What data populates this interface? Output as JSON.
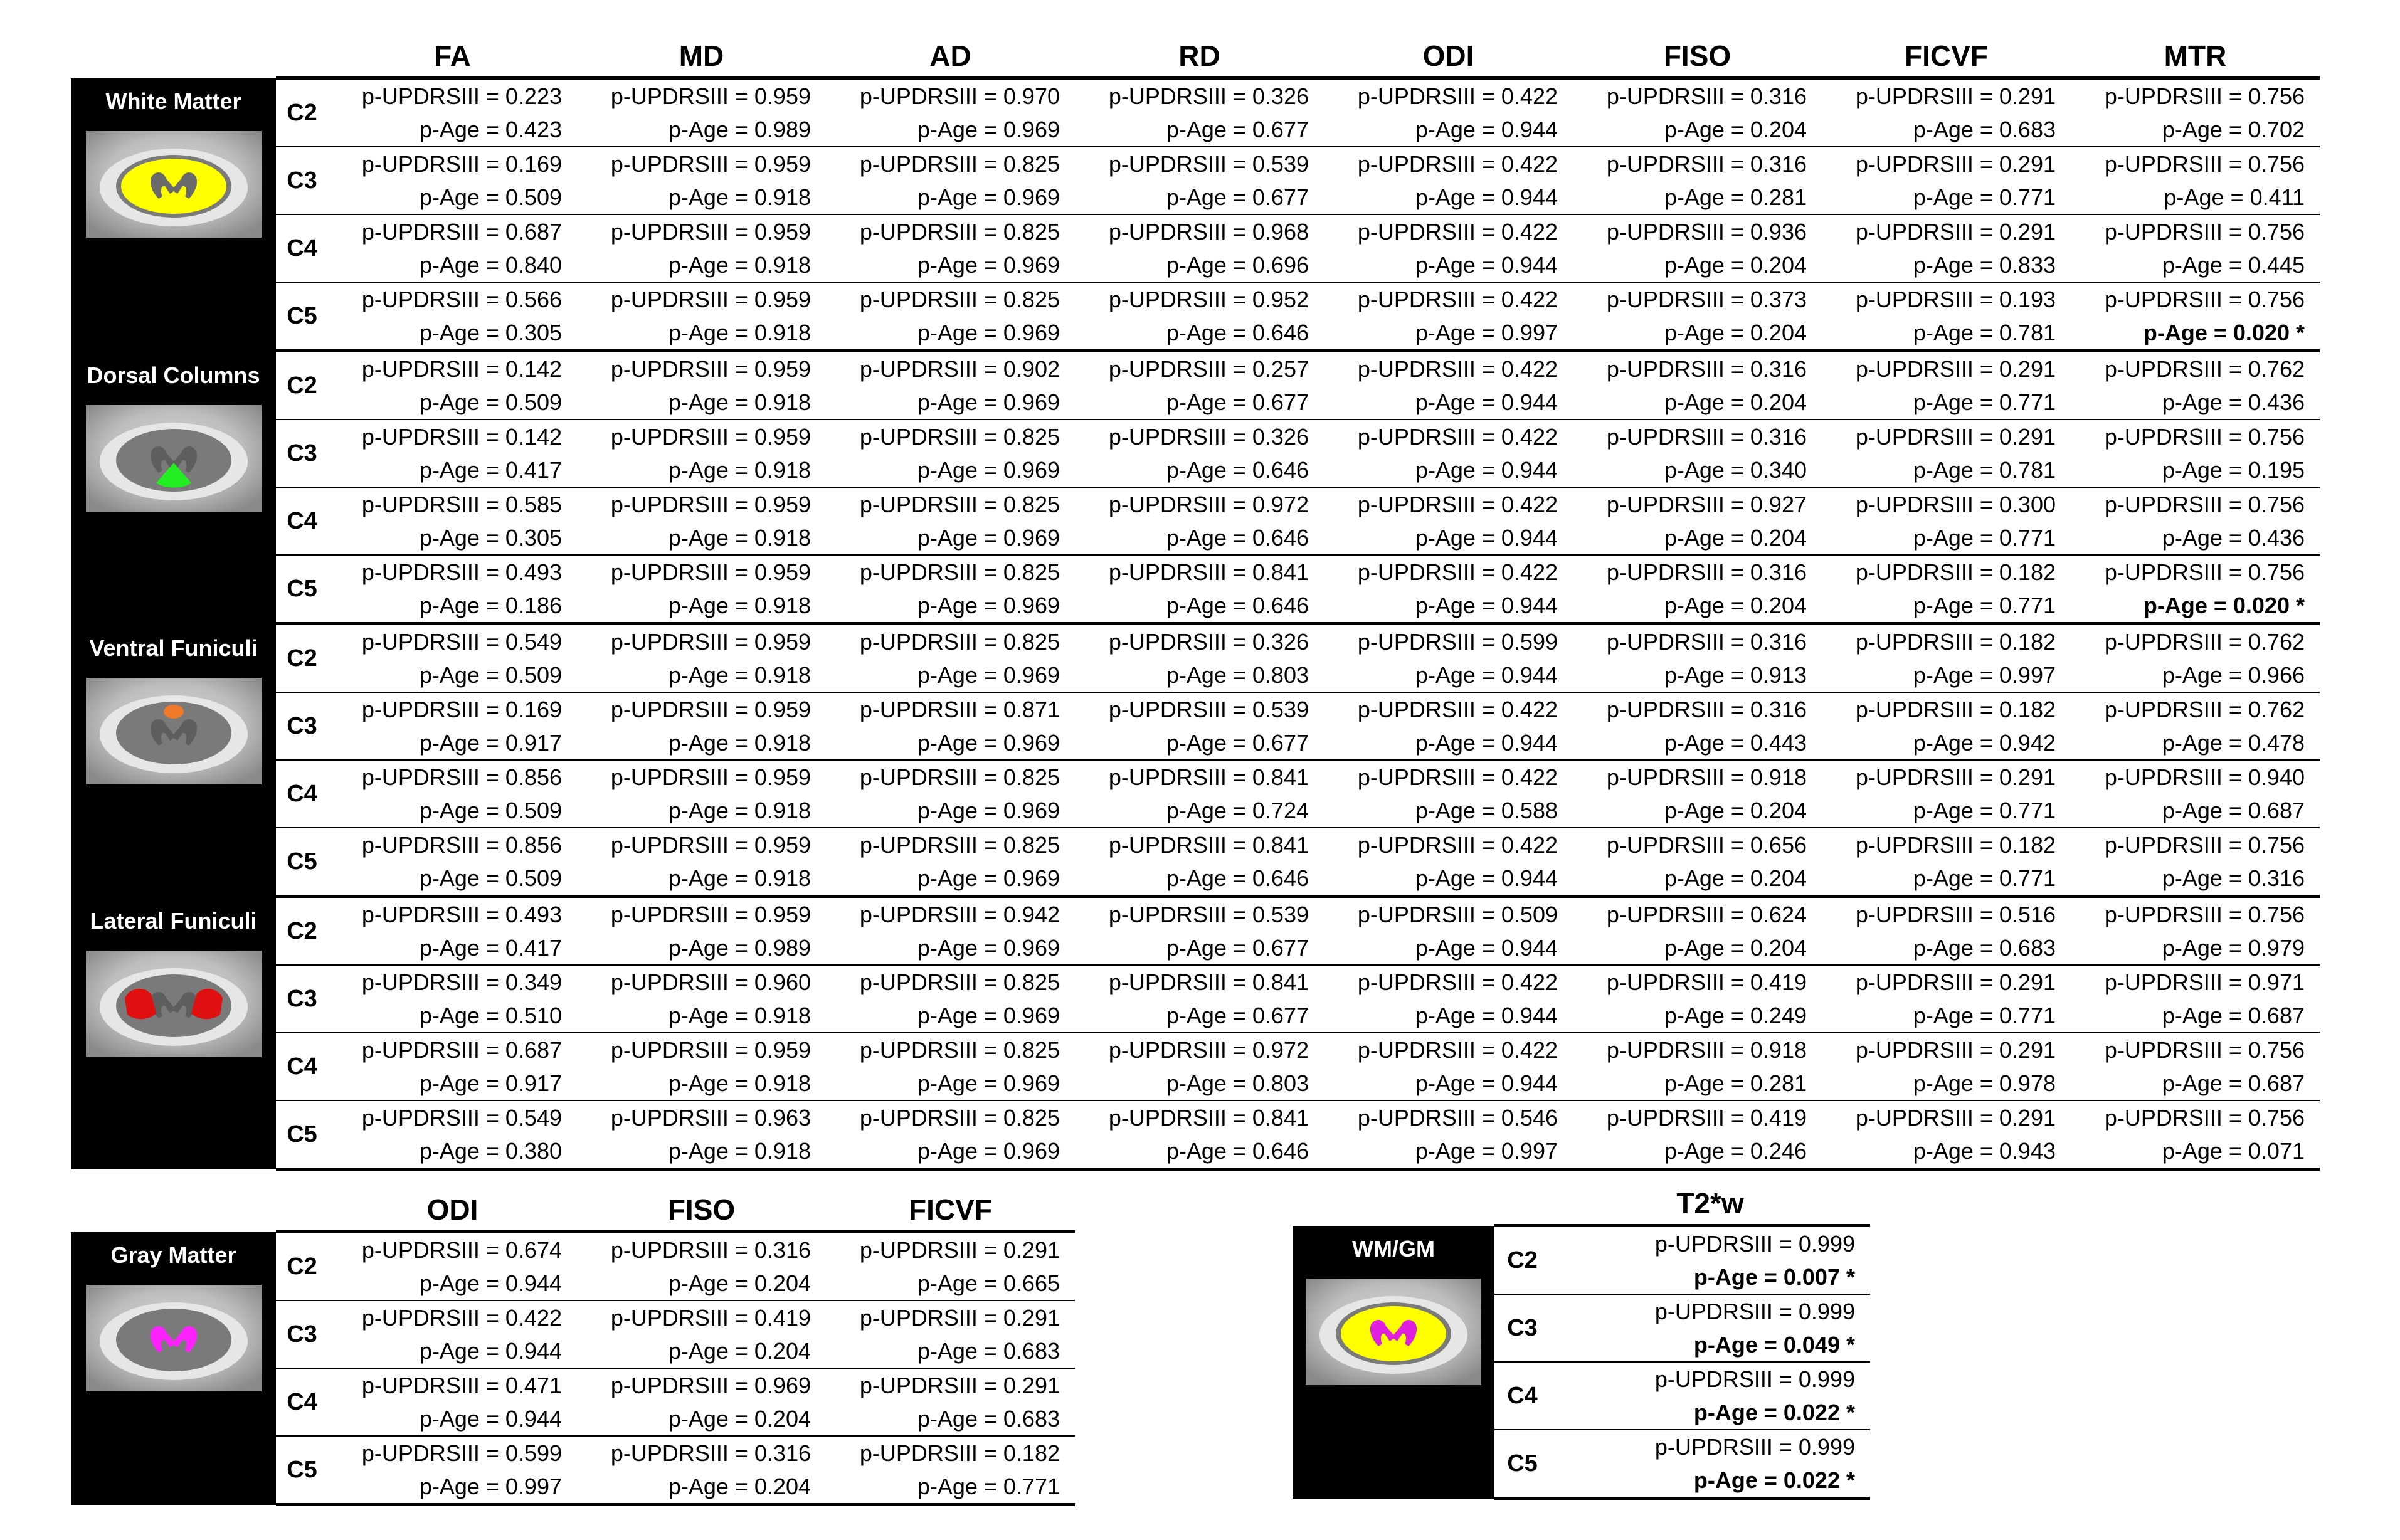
{
  "main_table": {
    "columns": [
      "FA",
      "MD",
      "AD",
      "RD",
      "ODI",
      "FISO",
      "FICVF",
      "MTR"
    ],
    "groups": [
      {
        "label": "White Matter",
        "thumb": "white-matter",
        "rows": [
          {
            "level": "C2",
            "cells": [
              [
                "p-UPDRSIII = 0.223",
                "p-Age = 0.423"
              ],
              [
                "p-UPDRSIII = 0.959",
                "p-Age = 0.989"
              ],
              [
                "p-UPDRSIII = 0.970",
                "p-Age = 0.969"
              ],
              [
                "p-UPDRSIII = 0.326",
                "p-Age = 0.677"
              ],
              [
                "p-UPDRSIII = 0.422",
                "p-Age = 0.944"
              ],
              [
                "p-UPDRSIII = 0.316",
                "p-Age = 0.204"
              ],
              [
                "p-UPDRSIII = 0.291",
                "p-Age = 0.683"
              ],
              [
                "p-UPDRSIII = 0.756",
                "p-Age = 0.702"
              ]
            ]
          },
          {
            "level": "C3",
            "cells": [
              [
                "p-UPDRSIII = 0.169",
                "p-Age = 0.509"
              ],
              [
                "p-UPDRSIII = 0.959",
                "p-Age = 0.918"
              ],
              [
                "p-UPDRSIII = 0.825",
                "p-Age = 0.969"
              ],
              [
                "p-UPDRSIII = 0.539",
                "p-Age = 0.677"
              ],
              [
                "p-UPDRSIII = 0.422",
                "p-Age = 0.944"
              ],
              [
                "p-UPDRSIII = 0.316",
                "p-Age = 0.281"
              ],
              [
                "p-UPDRSIII = 0.291",
                "p-Age = 0.771"
              ],
              [
                "p-UPDRSIII = 0.756",
                "p-Age = 0.411"
              ]
            ]
          },
          {
            "level": "C4",
            "cells": [
              [
                "p-UPDRSIII = 0.687",
                "p-Age = 0.840"
              ],
              [
                "p-UPDRSIII = 0.959",
                "p-Age = 0.918"
              ],
              [
                "p-UPDRSIII = 0.825",
                "p-Age = 0.969"
              ],
              [
                "p-UPDRSIII = 0.968",
                "p-Age = 0.696"
              ],
              [
                "p-UPDRSIII = 0.422",
                "p-Age = 0.944"
              ],
              [
                "p-UPDRSIII = 0.936",
                "p-Age = 0.204"
              ],
              [
                "p-UPDRSIII = 0.291",
                "p-Age = 0.833"
              ],
              [
                "p-UPDRSIII = 0.756",
                "p-Age = 0.445"
              ]
            ]
          },
          {
            "level": "C5",
            "cells": [
              [
                "p-UPDRSIII = 0.566",
                "p-Age = 0.305"
              ],
              [
                "p-UPDRSIII = 0.959",
                "p-Age = 0.918"
              ],
              [
                "p-UPDRSIII = 0.825",
                "p-Age = 0.969"
              ],
              [
                "p-UPDRSIII = 0.952",
                "p-Age = 0.646"
              ],
              [
                "p-UPDRSIII = 0.422",
                "p-Age = 0.997"
              ],
              [
                "p-UPDRSIII = 0.373",
                "p-Age = 0.204"
              ],
              [
                "p-UPDRSIII = 0.193",
                "p-Age = 0.781"
              ],
              [
                "p-UPDRSIII = 0.756",
                "p-Age = 0.020 *"
              ]
            ]
          }
        ]
      },
      {
        "label": "Dorsal Columns",
        "thumb": "dorsal-columns",
        "rows": [
          {
            "level": "C2",
            "cells": [
              [
                "p-UPDRSIII = 0.142",
                "p-Age = 0.509"
              ],
              [
                "p-UPDRSIII = 0.959",
                "p-Age = 0.918"
              ],
              [
                "p-UPDRSIII = 0.902",
                "p-Age = 0.969"
              ],
              [
                "p-UPDRSIII = 0.257",
                "p-Age = 0.677"
              ],
              [
                "p-UPDRSIII = 0.422",
                "p-Age = 0.944"
              ],
              [
                "p-UPDRSIII = 0.316",
                "p-Age = 0.204"
              ],
              [
                "p-UPDRSIII = 0.291",
                "p-Age = 0.771"
              ],
              [
                "p-UPDRSIII = 0.762",
                "p-Age = 0.436"
              ]
            ]
          },
          {
            "level": "C3",
            "cells": [
              [
                "p-UPDRSIII = 0.142",
                "p-Age = 0.417"
              ],
              [
                "p-UPDRSIII = 0.959",
                "p-Age = 0.918"
              ],
              [
                "p-UPDRSIII = 0.825",
                "p-Age = 0.969"
              ],
              [
                "p-UPDRSIII = 0.326",
                "p-Age = 0.646"
              ],
              [
                "p-UPDRSIII = 0.422",
                "p-Age = 0.944"
              ],
              [
                "p-UPDRSIII = 0.316",
                "p-Age = 0.340"
              ],
              [
                "p-UPDRSIII = 0.291",
                "p-Age = 0.781"
              ],
              [
                "p-UPDRSIII = 0.756",
                "p-Age = 0.195"
              ]
            ]
          },
          {
            "level": "C4",
            "cells": [
              [
                "p-UPDRSIII = 0.585",
                "p-Age = 0.305"
              ],
              [
                "p-UPDRSIII = 0.959",
                "p-Age = 0.918"
              ],
              [
                "p-UPDRSIII = 0.825",
                "p-Age = 0.969"
              ],
              [
                "p-UPDRSIII = 0.972",
                "p-Age = 0.646"
              ],
              [
                "p-UPDRSIII = 0.422",
                "p-Age = 0.944"
              ],
              [
                "p-UPDRSIII = 0.927",
                "p-Age = 0.204"
              ],
              [
                "p-UPDRSIII = 0.300",
                "p-Age = 0.771"
              ],
              [
                "p-UPDRSIII = 0.756",
                "p-Age = 0.436"
              ]
            ]
          },
          {
            "level": "C5",
            "cells": [
              [
                "p-UPDRSIII = 0.493",
                "p-Age = 0.186"
              ],
              [
                "p-UPDRSIII = 0.959",
                "p-Age = 0.918"
              ],
              [
                "p-UPDRSIII = 0.825",
                "p-Age = 0.969"
              ],
              [
                "p-UPDRSIII = 0.841",
                "p-Age = 0.646"
              ],
              [
                "p-UPDRSIII = 0.422",
                "p-Age = 0.944"
              ],
              [
                "p-UPDRSIII = 0.316",
                "p-Age = 0.204"
              ],
              [
                "p-UPDRSIII = 0.182",
                "p-Age = 0.771"
              ],
              [
                "p-UPDRSIII = 0.756",
                "p-Age = 0.020 *"
              ]
            ]
          }
        ]
      },
      {
        "label": "Ventral Funiculi",
        "thumb": "ventral-funiculi",
        "rows": [
          {
            "level": "C2",
            "cells": [
              [
                "p-UPDRSIII = 0.549",
                "p-Age = 0.509"
              ],
              [
                "p-UPDRSIII = 0.959",
                "p-Age = 0.918"
              ],
              [
                "p-UPDRSIII = 0.825",
                "p-Age = 0.969"
              ],
              [
                "p-UPDRSIII = 0.326",
                "p-Age = 0.803"
              ],
              [
                "p-UPDRSIII = 0.599",
                "p-Age = 0.944"
              ],
              [
                "p-UPDRSIII = 0.316",
                "p-Age = 0.913"
              ],
              [
                "p-UPDRSIII = 0.182",
                "p-Age = 0.997"
              ],
              [
                "p-UPDRSIII = 0.762",
                "p-Age = 0.966"
              ]
            ]
          },
          {
            "level": "C3",
            "cells": [
              [
                "p-UPDRSIII = 0.169",
                "p-Age = 0.917"
              ],
              [
                "p-UPDRSIII = 0.959",
                "p-Age = 0.918"
              ],
              [
                "p-UPDRSIII = 0.871",
                "p-Age = 0.969"
              ],
              [
                "p-UPDRSIII = 0.539",
                "p-Age = 0.677"
              ],
              [
                "p-UPDRSIII = 0.422",
                "p-Age = 0.944"
              ],
              [
                "p-UPDRSIII = 0.316",
                "p-Age = 0.443"
              ],
              [
                "p-UPDRSIII = 0.182",
                "p-Age = 0.942"
              ],
              [
                "p-UPDRSIII = 0.762",
                "p-Age = 0.478"
              ]
            ]
          },
          {
            "level": "C4",
            "cells": [
              [
                "p-UPDRSIII = 0.856",
                "p-Age = 0.509"
              ],
              [
                "p-UPDRSIII = 0.959",
                "p-Age = 0.918"
              ],
              [
                "p-UPDRSIII = 0.825",
                "p-Age = 0.969"
              ],
              [
                "p-UPDRSIII = 0.841",
                "p-Age = 0.724"
              ],
              [
                "p-UPDRSIII = 0.422",
                "p-Age = 0.588"
              ],
              [
                "p-UPDRSIII = 0.918",
                "p-Age = 0.204"
              ],
              [
                "p-UPDRSIII = 0.291",
                "p-Age = 0.771"
              ],
              [
                "p-UPDRSIII = 0.940",
                "p-Age = 0.687"
              ]
            ]
          },
          {
            "level": "C5",
            "cells": [
              [
                "p-UPDRSIII = 0.856",
                "p-Age = 0.509"
              ],
              [
                "p-UPDRSIII = 0.959",
                "p-Age = 0.918"
              ],
              [
                "p-UPDRSIII = 0.825",
                "p-Age = 0.969"
              ],
              [
                "p-UPDRSIII = 0.841",
                "p-Age = 0.646"
              ],
              [
                "p-UPDRSIII = 0.422",
                "p-Age = 0.944"
              ],
              [
                "p-UPDRSIII = 0.656",
                "p-Age = 0.204"
              ],
              [
                "p-UPDRSIII = 0.182",
                "p-Age = 0.771"
              ],
              [
                "p-UPDRSIII = 0.756",
                "p-Age = 0.316"
              ]
            ]
          }
        ]
      },
      {
        "label": "Lateral Funiculi",
        "thumb": "lateral-funiculi",
        "rows": [
          {
            "level": "C2",
            "cells": [
              [
                "p-UPDRSIII = 0.493",
                "p-Age = 0.417"
              ],
              [
                "p-UPDRSIII = 0.959",
                "p-Age = 0.989"
              ],
              [
                "p-UPDRSIII = 0.942",
                "p-Age = 0.969"
              ],
              [
                "p-UPDRSIII = 0.539",
                "p-Age = 0.677"
              ],
              [
                "p-UPDRSIII = 0.509",
                "p-Age = 0.944"
              ],
              [
                "p-UPDRSIII = 0.624",
                "p-Age = 0.204"
              ],
              [
                "p-UPDRSIII = 0.516",
                "p-Age = 0.683"
              ],
              [
                "p-UPDRSIII = 0.756",
                "p-Age = 0.979"
              ]
            ]
          },
          {
            "level": "C3",
            "cells": [
              [
                "p-UPDRSIII = 0.349",
                "p-Age = 0.510"
              ],
              [
                "p-UPDRSIII = 0.960",
                "p-Age = 0.918"
              ],
              [
                "p-UPDRSIII = 0.825",
                "p-Age = 0.969"
              ],
              [
                "p-UPDRSIII = 0.841",
                "p-Age = 0.677"
              ],
              [
                "p-UPDRSIII = 0.422",
                "p-Age = 0.944"
              ],
              [
                "p-UPDRSIII = 0.419",
                "p-Age = 0.249"
              ],
              [
                "p-UPDRSIII = 0.291",
                "p-Age = 0.771"
              ],
              [
                "p-UPDRSIII = 0.971",
                "p-Age = 0.687"
              ]
            ]
          },
          {
            "level": "C4",
            "cells": [
              [
                "p-UPDRSIII = 0.687",
                "p-Age = 0.917"
              ],
              [
                "p-UPDRSIII = 0.959",
                "p-Age = 0.918"
              ],
              [
                "p-UPDRSIII = 0.825",
                "p-Age = 0.969"
              ],
              [
                "p-UPDRSIII = 0.972",
                "p-Age = 0.803"
              ],
              [
                "p-UPDRSIII = 0.422",
                "p-Age = 0.944"
              ],
              [
                "p-UPDRSIII = 0.918",
                "p-Age = 0.281"
              ],
              [
                "p-UPDRSIII = 0.291",
                "p-Age = 0.978"
              ],
              [
                "p-UPDRSIII = 0.756",
                "p-Age = 0.687"
              ]
            ]
          },
          {
            "level": "C5",
            "cells": [
              [
                "p-UPDRSIII = 0.549",
                "p-Age = 0.380"
              ],
              [
                "p-UPDRSIII = 0.963",
                "p-Age = 0.918"
              ],
              [
                "p-UPDRSIII = 0.825",
                "p-Age = 0.969"
              ],
              [
                "p-UPDRSIII = 0.841",
                "p-Age = 0.646"
              ],
              [
                "p-UPDRSIII = 0.546",
                "p-Age = 0.997"
              ],
              [
                "p-UPDRSIII = 0.419",
                "p-Age = 0.246"
              ],
              [
                "p-UPDRSIII = 0.291",
                "p-Age = 0.943"
              ],
              [
                "p-UPDRSIII = 0.756",
                "p-Age = 0.071"
              ]
            ]
          }
        ]
      }
    ]
  },
  "gm_table": {
    "columns": [
      "ODI",
      "FISO",
      "FICVF"
    ],
    "groups": [
      {
        "label": "Gray Matter",
        "thumb": "gray-matter",
        "rows": [
          {
            "level": "C2",
            "cells": [
              [
                "p-UPDRSIII = 0.674",
                "p-Age = 0.944"
              ],
              [
                "p-UPDRSIII = 0.316",
                "p-Age = 0.204"
              ],
              [
                "p-UPDRSIII = 0.291",
                "p-Age = 0.665"
              ]
            ]
          },
          {
            "level": "C3",
            "cells": [
              [
                "p-UPDRSIII = 0.422",
                "p-Age = 0.944"
              ],
              [
                "p-UPDRSIII = 0.419",
                "p-Age = 0.204"
              ],
              [
                "p-UPDRSIII = 0.291",
                "p-Age = 0.683"
              ]
            ]
          },
          {
            "level": "C4",
            "cells": [
              [
                "p-UPDRSIII = 0.471",
                "p-Age = 0.944"
              ],
              [
                "p-UPDRSIII = 0.969",
                "p-Age = 0.204"
              ],
              [
                "p-UPDRSIII = 0.291",
                "p-Age = 0.683"
              ]
            ]
          },
          {
            "level": "C5",
            "cells": [
              [
                "p-UPDRSIII = 0.599",
                "p-Age = 0.997"
              ],
              [
                "p-UPDRSIII = 0.316",
                "p-Age = 0.204"
              ],
              [
                "p-UPDRSIII = 0.182",
                "p-Age = 0.771"
              ]
            ]
          }
        ]
      }
    ]
  },
  "t2_table": {
    "columns": [
      "T2*w"
    ],
    "groups": [
      {
        "label": "WM/GM",
        "thumb": "wm-gm",
        "rows": [
          {
            "level": "C2",
            "cells": [
              [
                "p-UPDRSIII = 0.999",
                "p-Age = 0.007 *"
              ]
            ]
          },
          {
            "level": "C3",
            "cells": [
              [
                "p-UPDRSIII = 0.999",
                "p-Age = 0.049 *"
              ]
            ]
          },
          {
            "level": "C4",
            "cells": [
              [
                "p-UPDRSIII = 0.999",
                "p-Age = 0.022 *"
              ]
            ]
          },
          {
            "level": "C5",
            "cells": [
              [
                "p-UPDRSIII = 0.999",
                "p-Age = 0.022 *"
              ]
            ]
          }
        ]
      }
    ]
  },
  "colors": {
    "white-matter": "#ffff00",
    "dorsal-columns": "#22ee22",
    "ventral-funiculi": "#f07a2a",
    "lateral-funiculi": "#e01010",
    "gray-matter": "#ff22ff",
    "wm-gm-wm": "#ffff00",
    "wm-gm-gm": "#e020e0"
  }
}
